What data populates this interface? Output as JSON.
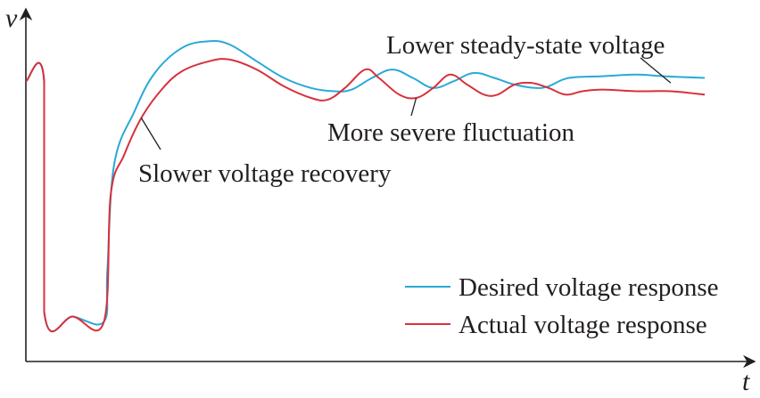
{
  "chart_data": {
    "type": "line",
    "title": "",
    "xlabel": "t",
    "ylabel": "v",
    "grid": false,
    "ticks": "none",
    "legend_position": "bottom-right",
    "xlim": [
      0,
      100
    ],
    "ylim": [
      0,
      100
    ],
    "series": [
      {
        "name": "Desired voltage response",
        "color": "#29a9d6",
        "points": [
          [
            0,
            81
          ],
          [
            2.7,
            81
          ],
          [
            2.7,
            12
          ],
          [
            7,
            10.5
          ],
          [
            11.5,
            9
          ],
          [
            12,
            24
          ],
          [
            13,
            56
          ],
          [
            16,
            72
          ],
          [
            19,
            83.5
          ],
          [
            23,
            91
          ],
          [
            27,
            93
          ],
          [
            30,
            92
          ],
          [
            34,
            87
          ],
          [
            38,
            82
          ],
          [
            42,
            79
          ],
          [
            45.5,
            78
          ],
          [
            48,
            78.5
          ],
          [
            51,
            82
          ],
          [
            54,
            84.5
          ],
          [
            57,
            82
          ],
          [
            60,
            79
          ],
          [
            63,
            81
          ],
          [
            66,
            83.5
          ],
          [
            69,
            82
          ],
          [
            72,
            80
          ],
          [
            75,
            79
          ],
          [
            77,
            79.5
          ],
          [
            80,
            82
          ],
          [
            85,
            82.5
          ],
          [
            90,
            83
          ],
          [
            94,
            82.5
          ],
          [
            100,
            82
          ]
        ]
      },
      {
        "name": "Actual voltage response",
        "color": "#d9303c",
        "points": [
          [
            0,
            81
          ],
          [
            2.7,
            81
          ],
          [
            2.7,
            12
          ],
          [
            7,
            10.5
          ],
          [
            11.5,
            9
          ],
          [
            12.5,
            47
          ],
          [
            14.5,
            59
          ],
          [
            17,
            70
          ],
          [
            20,
            78.5
          ],
          [
            23,
            84
          ],
          [
            27,
            87
          ],
          [
            30,
            87.5
          ],
          [
            34,
            84.5
          ],
          [
            38,
            79.5
          ],
          [
            42,
            76
          ],
          [
            44.5,
            75.5
          ],
          [
            47,
            79
          ],
          [
            50,
            84.5
          ],
          [
            52,
            82
          ],
          [
            55,
            77
          ],
          [
            57.5,
            76
          ],
          [
            60,
            79
          ],
          [
            62.5,
            83
          ],
          [
            65,
            80
          ],
          [
            67.5,
            77
          ],
          [
            69.5,
            77
          ],
          [
            72,
            80
          ],
          [
            74.5,
            80.5
          ],
          [
            77,
            79
          ],
          [
            79.5,
            77
          ],
          [
            82,
            78
          ],
          [
            85,
            78.5
          ],
          [
            90,
            78
          ],
          [
            95,
            78
          ],
          [
            100,
            77
          ]
        ]
      }
    ],
    "annotations": [
      {
        "text": "Lower steady-state voltage",
        "x": 95,
        "y": 80.5
      },
      {
        "text": "More severe fluctuation",
        "x": 57.5,
        "y": 76
      },
      {
        "text": "Slower voltage recovery",
        "x": 17,
        "y": 70
      }
    ]
  }
}
